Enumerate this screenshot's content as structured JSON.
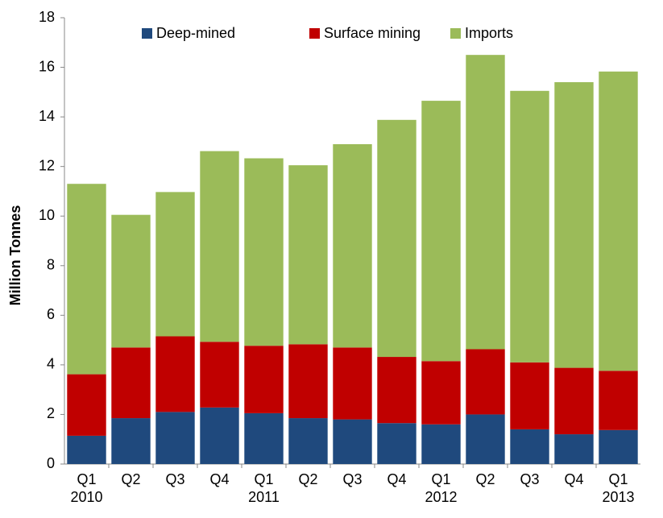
{
  "chart_data": {
    "type": "stacked-bar",
    "y_label": "Million Tonnes",
    "categories": [
      "Q1",
      "Q2",
      "Q3",
      "Q4",
      "Q1",
      "Q2",
      "Q3",
      "Q4",
      "Q1",
      "Q2",
      "Q3",
      "Q4",
      "Q1"
    ],
    "x_year_labels": [
      "2010",
      null,
      null,
      null,
      "2011",
      null,
      null,
      null,
      "2012",
      null,
      null,
      null,
      "2013"
    ],
    "series": [
      {
        "name": "Deep-mined",
        "color": "#1f497d",
        "values": [
          1.14,
          1.85,
          2.1,
          2.28,
          2.05,
          1.85,
          1.8,
          1.65,
          1.6,
          2.0,
          1.4,
          1.2,
          1.37
        ]
      },
      {
        "name": "Surface mining",
        "color": "#c00000",
        "values": [
          2.48,
          2.85,
          3.05,
          2.65,
          2.72,
          2.98,
          2.9,
          2.67,
          2.55,
          2.63,
          2.7,
          2.68,
          2.39
        ]
      },
      {
        "name": "Imports",
        "color": "#9bbb59",
        "values": [
          7.68,
          5.35,
          5.82,
          7.69,
          7.56,
          7.22,
          8.2,
          9.56,
          10.5,
          11.87,
          10.95,
          11.52,
          12.07
        ]
      }
    ],
    "ylim": [
      0,
      18
    ],
    "yticks": [
      0,
      2,
      4,
      6,
      8,
      10,
      12,
      14,
      16,
      18
    ],
    "legend": "top"
  }
}
